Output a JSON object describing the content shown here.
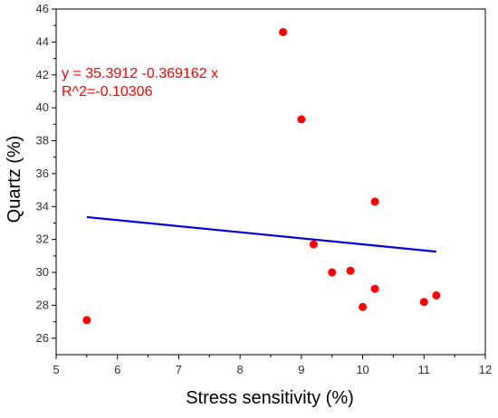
{
  "chart_data": {
    "type": "scatter",
    "title": "",
    "xlabel": "Stress sensitivity (%)",
    "ylabel": "Quartz (%)",
    "xlim": [
      5,
      12
    ],
    "ylim": [
      25,
      46
    ],
    "x_ticks": [
      5,
      6,
      7,
      8,
      9,
      10,
      11,
      12
    ],
    "y_ticks": [
      26,
      28,
      30,
      32,
      34,
      36,
      38,
      40,
      42,
      44,
      46
    ],
    "grid": false,
    "legend": "none",
    "series": [
      {
        "type": "scatter",
        "color": "#ff0000",
        "points": [
          {
            "x": 5.5,
            "y": 27.1
          },
          {
            "x": 8.7,
            "y": 44.6
          },
          {
            "x": 9.0,
            "y": 39.3
          },
          {
            "x": 9.2,
            "y": 31.7
          },
          {
            "x": 9.5,
            "y": 30.0
          },
          {
            "x": 9.8,
            "y": 30.1
          },
          {
            "x": 10.0,
            "y": 27.9
          },
          {
            "x": 10.2,
            "y": 34.3
          },
          {
            "x": 10.2,
            "y": 29.0
          },
          {
            "x": 11.0,
            "y": 28.2
          },
          {
            "x": 11.2,
            "y": 28.6
          }
        ]
      },
      {
        "type": "line",
        "color": "#0000dd",
        "points": [
          {
            "x": 5.5,
            "y": 33.36
          },
          {
            "x": 11.2,
            "y": 31.26
          }
        ]
      }
    ],
    "annotations": [
      "y = 35.3912 -0.369162  x",
      "R^2=-0.10306"
    ]
  }
}
